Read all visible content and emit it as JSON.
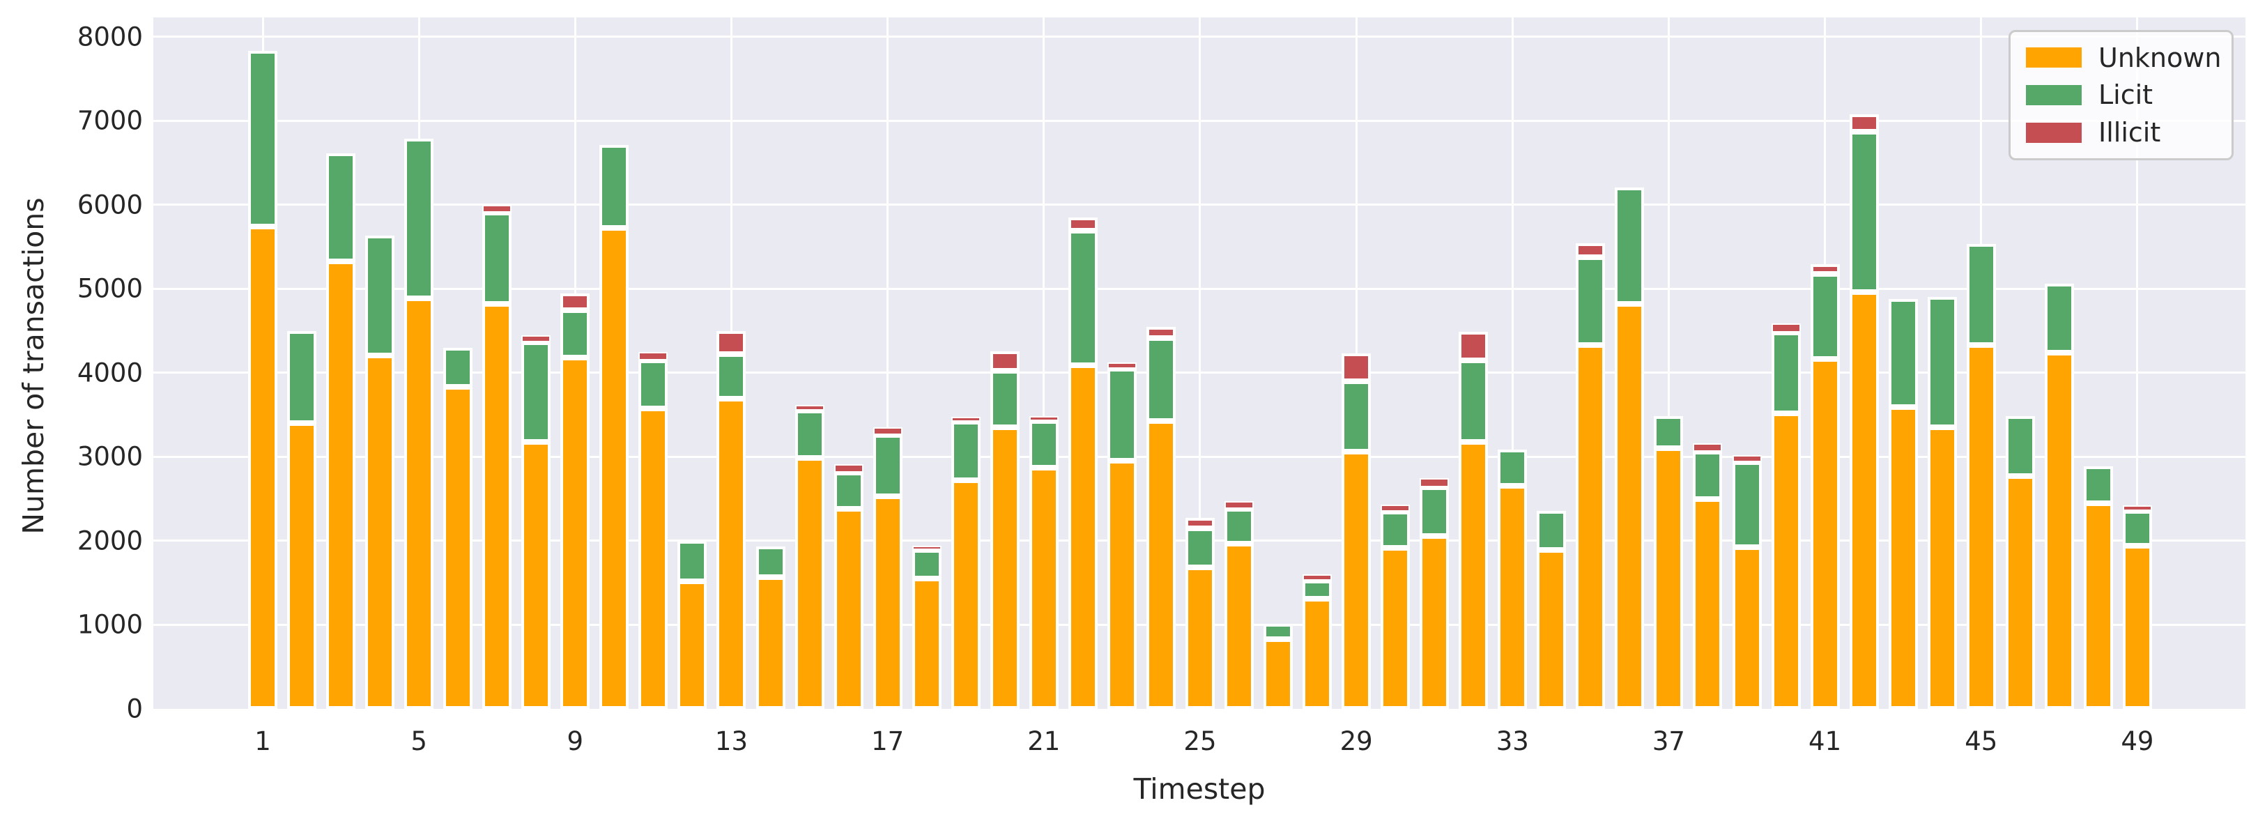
{
  "chart_data": {
    "type": "bar",
    "stacked": true,
    "title": "",
    "xlabel": "Timestep",
    "ylabel": "Number of transactions",
    "categories": [
      1,
      2,
      3,
      4,
      5,
      6,
      7,
      8,
      9,
      10,
      11,
      12,
      13,
      14,
      15,
      16,
      17,
      18,
      19,
      20,
      21,
      22,
      23,
      24,
      25,
      26,
      27,
      28,
      29,
      30,
      31,
      32,
      33,
      34,
      35,
      36,
      37,
      38,
      39,
      40,
      41,
      42,
      43,
      44,
      45,
      46,
      47,
      48,
      49
    ],
    "x_tick_labels": [
      "1",
      "5",
      "9",
      "13",
      "17",
      "21",
      "25",
      "29",
      "33",
      "37",
      "41",
      "45",
      "49"
    ],
    "x_tick_positions": [
      1,
      5,
      9,
      13,
      17,
      21,
      25,
      29,
      33,
      37,
      41,
      45,
      49
    ],
    "y_ticks": [
      0,
      1000,
      2000,
      3000,
      4000,
      5000,
      6000,
      7000,
      8000
    ],
    "ylim": [
      0,
      8230
    ],
    "grid": true,
    "background_color": "#eaeaf2",
    "gridline_color": "#ffffff",
    "legend": {
      "position": "upper right",
      "entries": [
        {
          "label": "Unknown",
          "color": "#ffa400"
        },
        {
          "label": "Licit",
          "color": "#55a868"
        },
        {
          "label": "Illicit",
          "color": "#c44e52"
        }
      ]
    },
    "series": [
      {
        "name": "Unknown",
        "color": "#ffa400",
        "values": [
          5740,
          3400,
          5330,
          4210,
          4890,
          3830,
          4820,
          3180,
          4180,
          5725,
          3575,
          1520,
          3690,
          1570,
          2990,
          2380,
          2530,
          1550,
          2720,
          3350,
          2870,
          4090,
          2955,
          3430,
          1685,
          1970,
          830,
          1315,
          3060,
          1915,
          2060,
          3180,
          2655,
          1890,
          4330,
          4820,
          3105,
          2495,
          1925,
          3515,
          4165,
          4965,
          3590,
          3355,
          4330,
          2775,
          4240,
          2450,
          1940
        ]
      },
      {
        "name": "Licit",
        "color": "#55a868",
        "values": [
          2090,
          1100,
          1285,
          1425,
          1900,
          470,
          1090,
          1180,
          565,
          985,
          570,
          480,
          530,
          360,
          560,
          435,
          730,
          340,
          695,
          670,
          560,
          1605,
          1095,
          980,
          460,
          415,
          180,
          210,
          840,
          435,
          575,
          965,
          435,
          470,
          1050,
          1390,
          380,
          565,
          1010,
          965,
          1010,
          1905,
          1285,
          1545,
          1200,
          710,
          820,
          435,
          415
        ]
      },
      {
        "name": "Illicit",
        "color": "#c44e52",
        "values": [
          0,
          0,
          0,
          0,
          0,
          0,
          90,
          85,
          200,
          0,
          105,
          0,
          280,
          0,
          65,
          95,
          90,
          50,
          60,
          240,
          55,
          155,
          70,
          140,
          125,
          85,
          0,
          75,
          330,
          85,
          110,
          340,
          0,
          0,
          160,
          0,
          0,
          100,
          85,
          110,
          120,
          210,
          0,
          0,
          0,
          0,
          0,
          0,
          65
        ]
      }
    ]
  }
}
